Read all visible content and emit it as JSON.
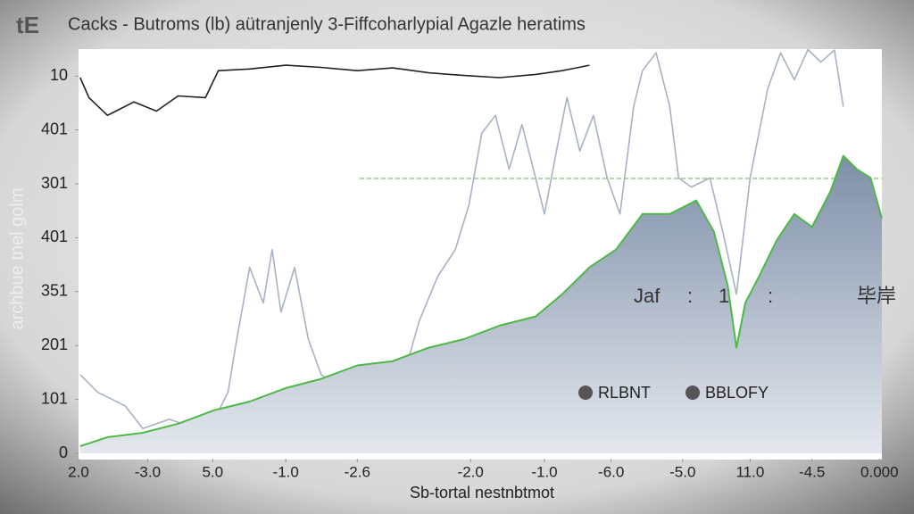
{
  "chart_data": {
    "type": "line",
    "title": "Cacks - Butroms (lb) aütranjenly 3-Fiffcoharlypial Agazle heratims",
    "y_label": "archbue tnel golm",
    "x_label": "Sb-tortal nestnbtmot",
    "annotations": [
      "Jaf",
      ":",
      "1",
      ":",
      "毕岸"
    ],
    "xlim": [
      0,
      100
    ],
    "ylim": [
      0,
      75
    ],
    "xticks": [
      {
        "value": 0,
        "label": "2.0"
      },
      {
        "value": 8.6,
        "label": "-3.0"
      },
      {
        "value": 16.7,
        "label": "5.0"
      },
      {
        "value": 25.8,
        "label": "-1.0"
      },
      {
        "value": 34.7,
        "label": "-2.6"
      },
      {
        "value": 48.8,
        "label": "-2.0"
      },
      {
        "value": 58,
        "label": "-1.0"
      },
      {
        "value": 66.3,
        "label": "-6.0"
      },
      {
        "value": 75.2,
        "label": "-5.0"
      },
      {
        "value": 83.6,
        "label": "11.0"
      },
      {
        "value": 91.3,
        "label": "-4.5"
      },
      {
        "value": 99.7,
        "label": "0.000"
      }
    ],
    "yticks": [
      0,
      {
        "value": 10,
        "label": "101"
      },
      {
        "value": 20,
        "label": "201"
      },
      {
        "value": 30,
        "label": "351"
      },
      {
        "value": 40,
        "label": "401"
      },
      {
        "value": 50,
        "label": "301"
      },
      {
        "value": 60,
        "label": "401"
      },
      {
        "value": 70,
        "label": "10"
      }
    ],
    "reference_line": {
      "value": 51,
      "x_start": 35,
      "color": "#8fd16a"
    },
    "series": [
      {
        "color": "#222222",
        "x": [
          0.2,
          1.3,
          3.6,
          6.9,
          9.7,
          12.4,
          15.8,
          17.4,
          21.3,
          25.8,
          30.2,
          34.7,
          39.1,
          43.6,
          48.0,
          52.4,
          56.9,
          60.2,
          63.6
        ],
        "values": [
          69.7,
          66.0,
          62.7,
          65.2,
          63.5,
          66.3,
          66.0,
          71.0,
          71.3,
          72.0,
          71.6,
          71.0,
          71.5,
          70.6,
          70.1,
          69.7,
          70.3,
          71.0,
          72.0
        ]
      },
      {
        "name": "RLBNT",
        "color": "#a9b2c2",
        "x": [
          0.2,
          2.4,
          5.8,
          8.0,
          11.3,
          14.7,
          16.9,
          18.6,
          19.7,
          21.3,
          23.0,
          24.1,
          25.2,
          26.9,
          28.6,
          30.2,
          32.4,
          34.7,
          36.9,
          40.2,
          42.4,
          44.7,
          46.9,
          48.6,
          50.2,
          51.9,
          53.6,
          55.2,
          56.9,
          58.0,
          59.7,
          60.8,
          62.4,
          64.1,
          65.8,
          67.4,
          69.1,
          70.2,
          71.9,
          73.6,
          74.7,
          76.3,
          78.6,
          80.2,
          81.9,
          83.6,
          84.7,
          85.8,
          87.4,
          89.1,
          90.8,
          92.4,
          94.1,
          95.2
        ],
        "values": [
          14.6,
          11.3,
          8.8,
          4.6,
          6.3,
          4.6,
          6.3,
          11.3,
          21.2,
          34.5,
          27.9,
          37.8,
          26.2,
          34.5,
          21.2,
          14.6,
          12.1,
          9.6,
          11.3,
          12.9,
          24.5,
          32.8,
          37.8,
          46.1,
          59.4,
          62.7,
          52.7,
          61.0,
          51.1,
          44.4,
          57.7,
          66.0,
          56.1,
          62.7,
          51.1,
          44.4,
          64.3,
          71.0,
          74.3,
          64.3,
          51.1,
          49.4,
          51.1,
          41.1,
          29.5,
          51.1,
          59.4,
          67.7,
          74.3,
          69.3,
          74.9,
          72.6,
          74.8,
          64.3
        ]
      },
      {
        "name": "BBLOFY",
        "color": "#4fb848",
        "area": true,
        "x": [
          0.2,
          3.6,
          8.0,
          12.4,
          16.9,
          21.3,
          25.8,
          30.2,
          34.7,
          39.1,
          43.6,
          48.0,
          52.4,
          56.9,
          60.2,
          63.6,
          66.9,
          70.2,
          73.6,
          76.9,
          79.1,
          80.8,
          81.9,
          83.0,
          84.7,
          86.9,
          89.1,
          91.3,
          93.6,
          95.2,
          96.9,
          98.6,
          100
        ],
        "values": [
          1.3,
          3.0,
          3.8,
          5.5,
          8.0,
          9.6,
          12.1,
          13.8,
          16.3,
          17.1,
          19.6,
          21.2,
          23.7,
          25.4,
          29.5,
          34.5,
          37.8,
          44.4,
          44.4,
          46.9,
          41.1,
          31.2,
          19.6,
          27.9,
          32.8,
          39.5,
          44.4,
          42.0,
          48.6,
          55.2,
          52.7,
          51.1,
          43.6
        ]
      }
    ]
  }
}
